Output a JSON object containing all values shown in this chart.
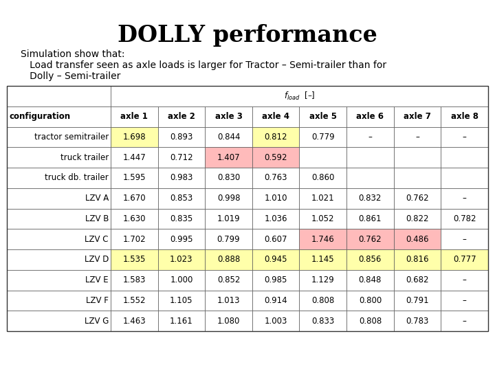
{
  "title": "DOLLY performance",
  "subtitle_line1": "Simulation show that:",
  "subtitle_line2": "   Load transfer seen as axle loads is larger for Tractor – Semi-trailer than for",
  "subtitle_line3": "   Dolly – Semi-trailer",
  "col_headers": [
    "configuration",
    "axle 1",
    "axle 2",
    "axle 3",
    "axle 4",
    "axle 5",
    "axle 6",
    "axle 7",
    "axle 8"
  ],
  "rows": [
    {
      "label": "tractor semitrailer",
      "values": [
        "1.698",
        "0.893",
        "0.844",
        "0.812",
        "0.779",
        "–",
        "–",
        "–"
      ]
    },
    {
      "label": "truck trailer",
      "values": [
        "1.447",
        "0.712",
        "1.407",
        "0.592",
        "",
        "",
        "",
        ""
      ]
    },
    {
      "label": "truck db. trailer",
      "values": [
        "1.595",
        "0.983",
        "0.830",
        "0.763",
        "0.860",
        "",
        "",
        ""
      ]
    },
    {
      "label": "LZV A",
      "values": [
        "1.670",
        "0.853",
        "0.998",
        "1.010",
        "1.021",
        "0.832",
        "0.762",
        "–"
      ]
    },
    {
      "label": "LZV B",
      "values": [
        "1.630",
        "0.835",
        "1.019",
        "1.036",
        "1.052",
        "0.861",
        "0.822",
        "0.782"
      ]
    },
    {
      "label": "LZV C",
      "values": [
        "1.702",
        "0.995",
        "0.799",
        "0.607",
        "1.746",
        "0.762",
        "0.486",
        "–"
      ]
    },
    {
      "label": "LZV D",
      "values": [
        "1.535",
        "1.023",
        "0.888",
        "0.945",
        "1.145",
        "0.856",
        "0.816",
        "0.777"
      ]
    },
    {
      "label": "LZV E",
      "values": [
        "1.583",
        "1.000",
        "0.852",
        "0.985",
        "1.129",
        "0.848",
        "0.682",
        "–"
      ]
    },
    {
      "label": "LZV F",
      "values": [
        "1.552",
        "1.105",
        "1.013",
        "0.914",
        "0.808",
        "0.800",
        "0.791",
        "–"
      ]
    },
    {
      "label": "LZV G",
      "values": [
        "1.463",
        "1.161",
        "1.080",
        "1.003",
        "0.833",
        "0.808",
        "0.783",
        "–"
      ]
    }
  ],
  "cell_colors": {
    "0_1": "#ffffaa",
    "0_4": "#ffffaa",
    "1_3": "#ffbbbb",
    "1_4": "#ffbbbb",
    "5_5": "#ffbbbb",
    "5_6": "#ffbbbb",
    "5_7": "#ffbbbb",
    "6_1": "#ffffaa",
    "6_2": "#ffffaa",
    "6_3": "#ffffaa",
    "6_4": "#ffffaa",
    "6_5": "#ffffaa",
    "6_6": "#ffffaa",
    "6_7": "#ffffaa",
    "6_8": "#ffffaa"
  },
  "background": "#ffffff",
  "title_fontsize": 24,
  "subtitle_fontsize": 10,
  "table_fontsize": 8.5
}
